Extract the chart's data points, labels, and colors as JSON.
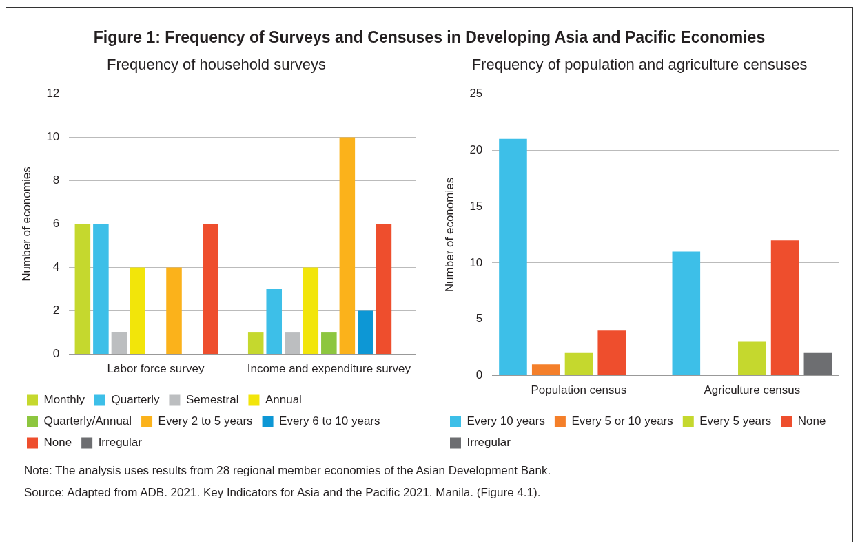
{
  "chart_data": [
    {
      "type": "other",
      "title": "Figure 1: Frequency of Surveys and Censuses in Developing Asia and Pacific Economies"
    },
    {
      "type": "bar",
      "title": "Frequency of household surveys",
      "ylabel": "Number of economies",
      "categories": [
        "Labor force survey",
        "Income and expenditure survey"
      ],
      "series": [
        {
          "name": "Monthly",
          "color": "#c5d82e",
          "values": [
            6,
            1
          ]
        },
        {
          "name": "Quarterly",
          "color": "#3dbfe8",
          "values": [
            6,
            3
          ]
        },
        {
          "name": "Semestral",
          "color": "#bcbec0",
          "values": [
            1,
            1
          ]
        },
        {
          "name": "Annual",
          "color": "#f2e50a",
          "values": [
            4,
            4
          ]
        },
        {
          "name": "Quarterly/Annual",
          "color": "#8dc63f",
          "values": [
            0,
            1
          ]
        },
        {
          "name": "Every 2 to 5 years",
          "color": "#fbb21b",
          "values": [
            4,
            10
          ]
        },
        {
          "name": "Every 6 to 10 years",
          "color": "#0d97d5",
          "values": [
            0,
            2
          ]
        },
        {
          "name": "None",
          "color": "#ee4e2d",
          "values": [
            6,
            6
          ]
        },
        {
          "name": "Irregular",
          "color": "#6d6e71",
          "values": [
            0,
            0
          ]
        }
      ],
      "ylim": [
        0,
        12
      ],
      "yticks": [
        0,
        2,
        4,
        6,
        8,
        10,
        12
      ],
      "grid": "y",
      "legend": "bottom"
    },
    {
      "type": "bar",
      "title": "Frequency of population and agriculture censuses",
      "ylabel": "Number of economies",
      "categories": [
        "Population census",
        "Agriculture census"
      ],
      "series": [
        {
          "name": "Every 10 years",
          "color": "#3dbfe8",
          "values": [
            21,
            11
          ]
        },
        {
          "name": "Every 5 or 10 years",
          "color": "#f47f2a",
          "values": [
            1,
            0
          ]
        },
        {
          "name": "Every 5 years",
          "color": "#c5d82e",
          "values": [
            2,
            3
          ]
        },
        {
          "name": "None",
          "color": "#ee4e2d",
          "values": [
            4,
            12
          ]
        },
        {
          "name": "Irregular",
          "color": "#6d6e71",
          "values": [
            0,
            2
          ]
        }
      ],
      "ylim": [
        0,
        25
      ],
      "yticks": [
        0,
        5,
        10,
        15,
        20,
        25
      ],
      "grid": "y",
      "legend": "bottom"
    },
    {
      "type": "other",
      "annotations": [
        "Note: The analysis uses results from 28 regional member economies of the Asian Development Bank.",
        "Source: Adapted from ADB. 2021. Key Indicators for Asia and the Pacific 2021. Manila. (Figure 4.1)."
      ]
    }
  ]
}
